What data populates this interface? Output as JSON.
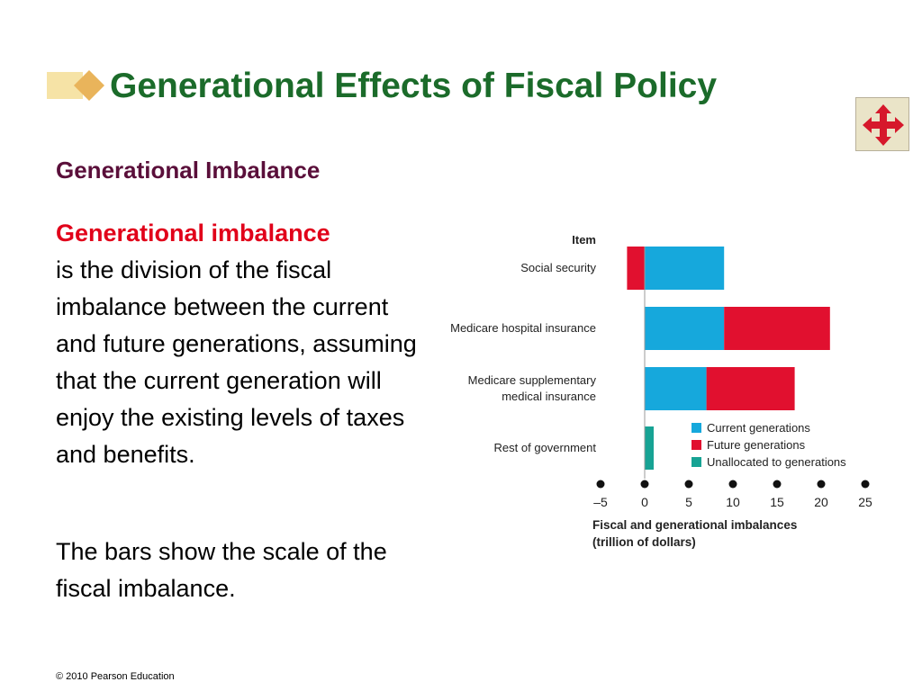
{
  "slide": {
    "title": "Generational Effects of Fiscal Policy",
    "subheading": "Generational Imbalance",
    "term": "Generational imbalance",
    "definition": "is the division of the fiscal imbalance between the current and future generations, assuming that the current generation will enjoy the existing levels of taxes and benefits.",
    "note": "The bars show the scale of the fiscal imbalance.",
    "footer": "© 2010 Pearson Education",
    "nav_icon": "four-way-arrows-icon"
  },
  "colors": {
    "title": "#1b6b2a",
    "subheading": "#5a0f3a",
    "term": "#e1001a",
    "current": "#16a8dc",
    "future": "#e1102f",
    "unallocated": "#17a394"
  },
  "chart_data": {
    "type": "bar",
    "orientation": "horizontal",
    "stacked": true,
    "category_header": "Item",
    "categories": [
      [
        "Social security"
      ],
      [
        "Medicare hospital insurance"
      ],
      [
        "Medicare supplementary",
        "medical insurance"
      ],
      [
        "Rest of government"
      ]
    ],
    "series": [
      {
        "name": "Current generations",
        "color": "#16a8dc",
        "values": [
          9,
          9,
          7,
          0
        ]
      },
      {
        "name": "Future generations",
        "color": "#e1102f",
        "values": [
          -2,
          12,
          10,
          0
        ]
      },
      {
        "name": "Unallocated to generations",
        "color": "#17a394",
        "values": [
          0,
          0,
          0,
          1
        ]
      }
    ],
    "xlim": [
      -5,
      25
    ],
    "xticks": [
      "–5",
      "0",
      "5",
      "10",
      "15",
      "20",
      "25"
    ],
    "xlabel": [
      "Fiscal and generational imbalances",
      "(trillion of dollars)"
    ],
    "legend_position": "lower-right",
    "grid": false
  }
}
